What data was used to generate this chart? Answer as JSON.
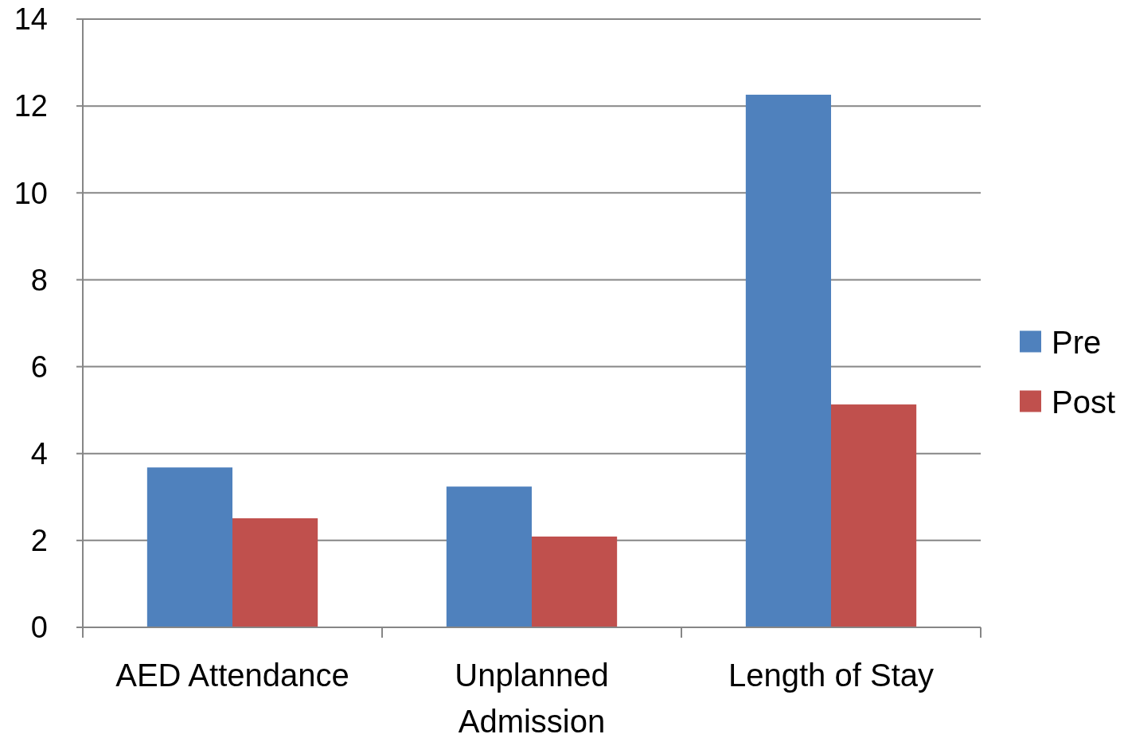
{
  "chart_data": {
    "type": "bar",
    "categories": [
      "AED Attendance",
      "Unplanned Admission",
      "Length of Stay"
    ],
    "series": [
      {
        "name": "Pre",
        "color": "#4f81bd",
        "values": [
          3.68,
          3.24,
          12.26
        ]
      },
      {
        "name": "Post",
        "color": "#c0504d",
        "values": [
          2.51,
          2.09,
          5.13
        ]
      }
    ],
    "ylim": [
      0,
      14
    ],
    "yticks": [
      0,
      2,
      4,
      6,
      8,
      10,
      12,
      14
    ],
    "grid": "y",
    "legend": "right"
  }
}
